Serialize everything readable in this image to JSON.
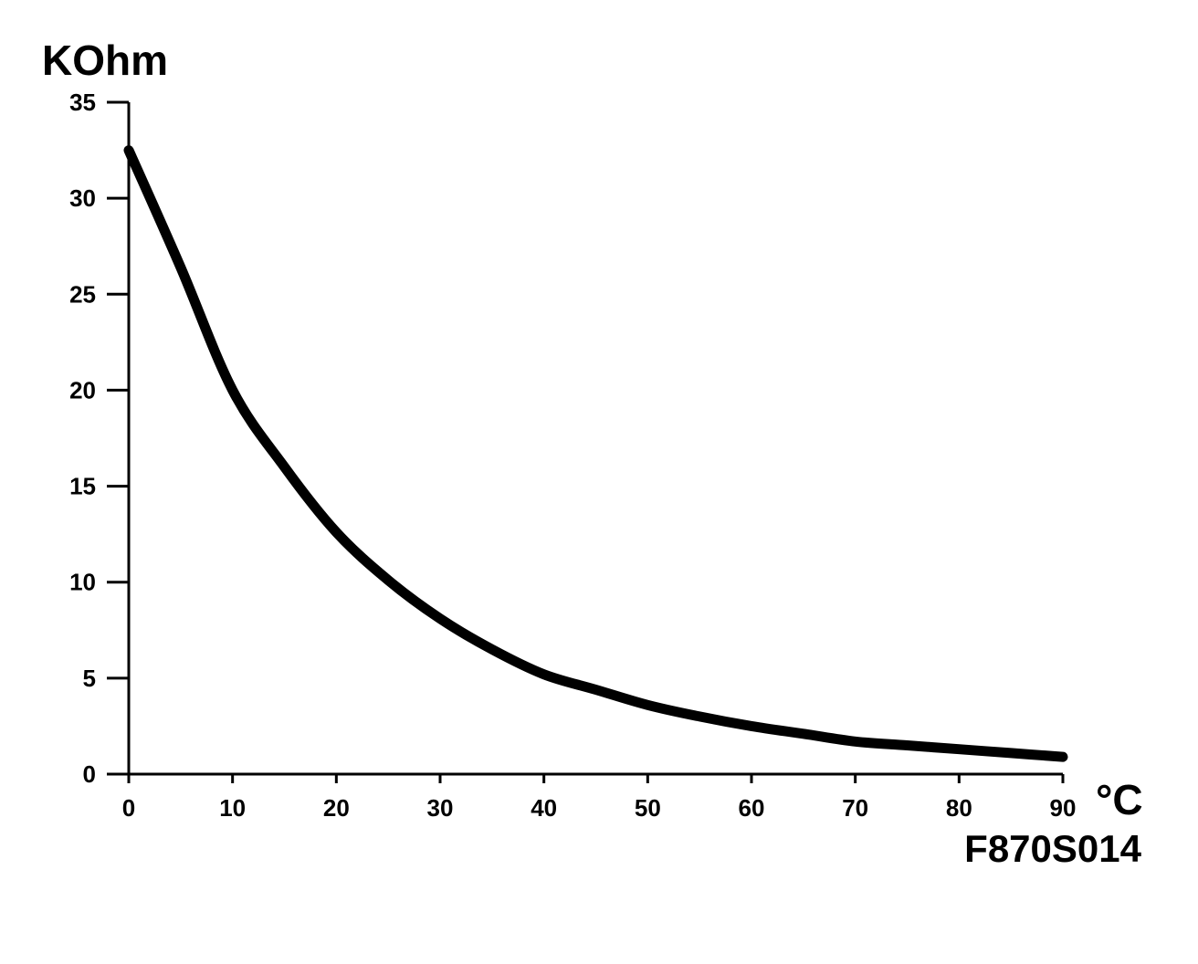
{
  "chart_data": {
    "type": "line",
    "ylabel": "KOhm",
    "xlabel": "°C",
    "figure_code": "F870S014",
    "xlim": [
      0,
      90
    ],
    "ylim": [
      0,
      35
    ],
    "x_ticks": [
      "0",
      "10",
      "20",
      "30",
      "40",
      "50",
      "60",
      "70",
      "80",
      "90"
    ],
    "y_ticks": [
      "0",
      "5",
      "10",
      "15",
      "20",
      "25",
      "30",
      "35"
    ],
    "grid": false,
    "line_color": "#000000",
    "series": [
      {
        "x": [
          0,
          5,
          10,
          15,
          20,
          25,
          30,
          35,
          40,
          45,
          50,
          55,
          60,
          65,
          70,
          75,
          80,
          85,
          90
        ],
        "values": [
          32.5,
          26.4,
          20.0,
          16.0,
          12.6,
          10.1,
          8.1,
          6.5,
          5.2,
          4.4,
          3.6,
          3.0,
          2.5,
          2.1,
          1.7,
          1.5,
          1.3,
          1.1,
          0.9
        ]
      }
    ]
  }
}
